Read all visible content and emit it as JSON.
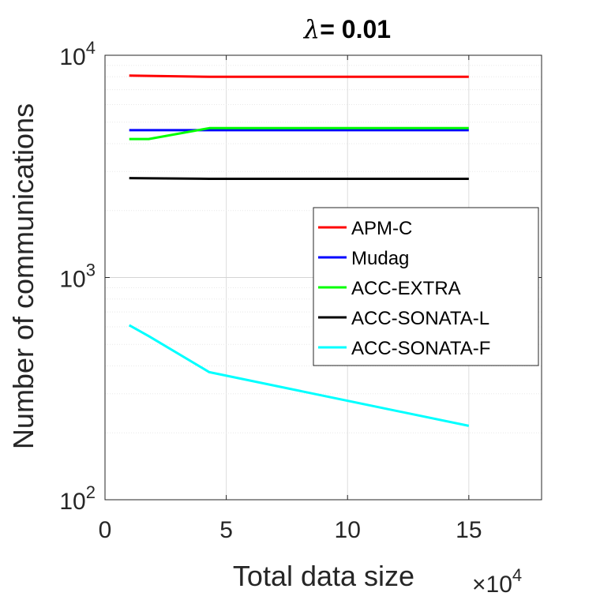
{
  "chart_data": {
    "type": "line",
    "title_prefix": "λ",
    "title_suffix": "= 0.01",
    "xlabel": "Total data size",
    "ylabel": "Number of communications",
    "x_multiplier_prefix": "×10",
    "x_multiplier_exp": "4",
    "xlim": [
      0,
      18
    ],
    "ylim": [
      100,
      10000
    ],
    "y_scale": "log",
    "grid": true,
    "legend_position": "right",
    "x_ticks": [
      0,
      5,
      10,
      15
    ],
    "x_tick_labels": [
      "0",
      "5",
      "10",
      "15"
    ],
    "y_ticks": [
      100,
      1000,
      10000
    ],
    "y_tick_base": "10",
    "y_tick_exps": [
      "2",
      "3",
      "4"
    ],
    "series": [
      {
        "name": "APM-C",
        "color": "#ff0000",
        "x": [
          1,
          4.3,
          15
        ],
        "y": [
          8100,
          8000,
          8000
        ]
      },
      {
        "name": "Mudag",
        "color": "#0000ff",
        "x": [
          1,
          4.3,
          15
        ],
        "y": [
          4600,
          4600,
          4600
        ]
      },
      {
        "name": "ACC-EXTRA",
        "color": "#00ff00",
        "x": [
          1,
          1.8,
          4.3,
          15
        ],
        "y": [
          4200,
          4200,
          4700,
          4700
        ]
      },
      {
        "name": "ACC-SONATA-L",
        "color": "#000000",
        "x": [
          1,
          4.3,
          15
        ],
        "y": [
          2800,
          2780,
          2780
        ]
      },
      {
        "name": "ACC-SONATA-F",
        "color": "#00ffff",
        "x": [
          1,
          1.8,
          4.3,
          15
        ],
        "y": [
          610,
          545,
          375,
          215
        ]
      }
    ]
  }
}
